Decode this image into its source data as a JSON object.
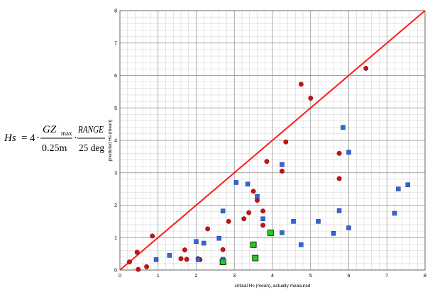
{
  "formula": {
    "lhs": "Hs",
    "eq": "=",
    "coef": "4",
    "num1_main": "GZ",
    "num1_sub": "max",
    "den1": "0.25m",
    "num2": "RANGE",
    "den2": "25 deg",
    "dot": "·"
  },
  "chart_data": {
    "type": "scatter",
    "xlabel": "critical Hs (mean), actually measured",
    "ylabel": "predicted Hs (mean)",
    "xlim": [
      0,
      8
    ],
    "ylim": [
      0,
      8
    ],
    "xticks": [
      0,
      1,
      2,
      3,
      4,
      5,
      6,
      7,
      8
    ],
    "yticks": [
      0,
      1,
      2,
      3,
      4,
      5,
      6,
      7,
      8
    ],
    "grid": true,
    "minor_step": 0.2,
    "reference_line": {
      "x": [
        0,
        8
      ],
      "y": [
        0,
        8
      ],
      "color": "#ff1a1a"
    },
    "series": [
      {
        "marker": "circle",
        "color": "#cc1111",
        "points": [
          [
            0.25,
            0.25
          ],
          [
            0.45,
            0.55
          ],
          [
            0.48,
            0.02
          ],
          [
            0.7,
            0.1
          ],
          [
            0.85,
            1.05
          ],
          [
            1.6,
            0.35
          ],
          [
            1.7,
            0.62
          ],
          [
            1.75,
            0.33
          ],
          [
            2.05,
            0.35
          ],
          [
            2.1,
            0.32
          ],
          [
            2.3,
            1.27
          ],
          [
            2.7,
            0.63
          ],
          [
            2.85,
            1.5
          ],
          [
            3.25,
            1.58
          ],
          [
            3.38,
            1.77
          ],
          [
            3.5,
            2.43
          ],
          [
            3.6,
            2.15
          ],
          [
            3.75,
            1.82
          ],
          [
            3.75,
            1.38
          ],
          [
            3.85,
            3.35
          ],
          [
            4.25,
            3.05
          ],
          [
            4.35,
            3.95
          ],
          [
            4.75,
            5.73
          ],
          [
            5.0,
            5.3
          ],
          [
            5.75,
            3.6
          ],
          [
            5.75,
            2.82
          ],
          [
            6.45,
            6.22
          ]
        ]
      },
      {
        "marker": "square",
        "color": "#3366dd",
        "points": [
          [
            0.95,
            0.32
          ],
          [
            1.3,
            0.45
          ],
          [
            2.0,
            0.88
          ],
          [
            2.05,
            0.32
          ],
          [
            2.2,
            0.83
          ],
          [
            2.6,
            0.98
          ],
          [
            2.7,
            1.82
          ],
          [
            2.7,
            0.33
          ],
          [
            3.05,
            2.7
          ],
          [
            3.35,
            2.65
          ],
          [
            3.6,
            2.27
          ],
          [
            3.75,
            1.58
          ],
          [
            4.25,
            3.25
          ],
          [
            4.25,
            1.15
          ],
          [
            4.55,
            1.5
          ],
          [
            4.75,
            0.78
          ],
          [
            5.2,
            1.5
          ],
          [
            5.6,
            1.13
          ],
          [
            5.75,
            1.83
          ],
          [
            5.85,
            4.4
          ],
          [
            6.0,
            3.63
          ],
          [
            6.0,
            1.3
          ],
          [
            7.2,
            1.75
          ],
          [
            7.3,
            2.5
          ],
          [
            7.55,
            2.63
          ]
        ]
      },
      {
        "marker": "square",
        "color": "#22cc22",
        "points": [
          [
            2.7,
            0.25
          ],
          [
            3.5,
            0.78
          ],
          [
            3.55,
            0.37
          ],
          [
            3.95,
            1.15
          ]
        ]
      }
    ]
  }
}
